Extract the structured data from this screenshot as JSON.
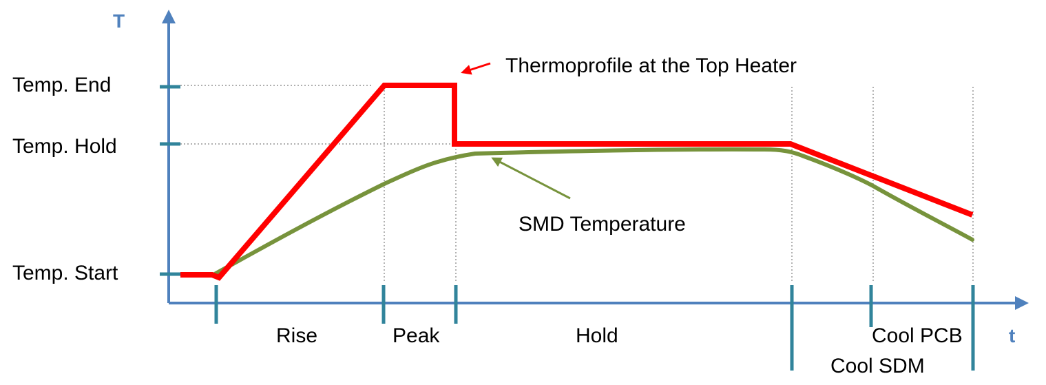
{
  "colors": {
    "axis": "#4f81bd",
    "tick": "#31849b",
    "heater": "#ff0000",
    "smd": "#77933c",
    "guide": "#7f7f7f"
  },
  "axes": {
    "y_label": "T",
    "x_label": "t"
  },
  "y_levels": [
    "Temp. End",
    "Temp. Hold",
    "Temp. Start"
  ],
  "phases": [
    "Rise",
    "Peak",
    "Hold",
    "Cool PCB",
    "Cool SDM"
  ],
  "annotations": {
    "heater": "Thermoprofile at the Top Heater",
    "smd": "SMD Temperature"
  }
}
